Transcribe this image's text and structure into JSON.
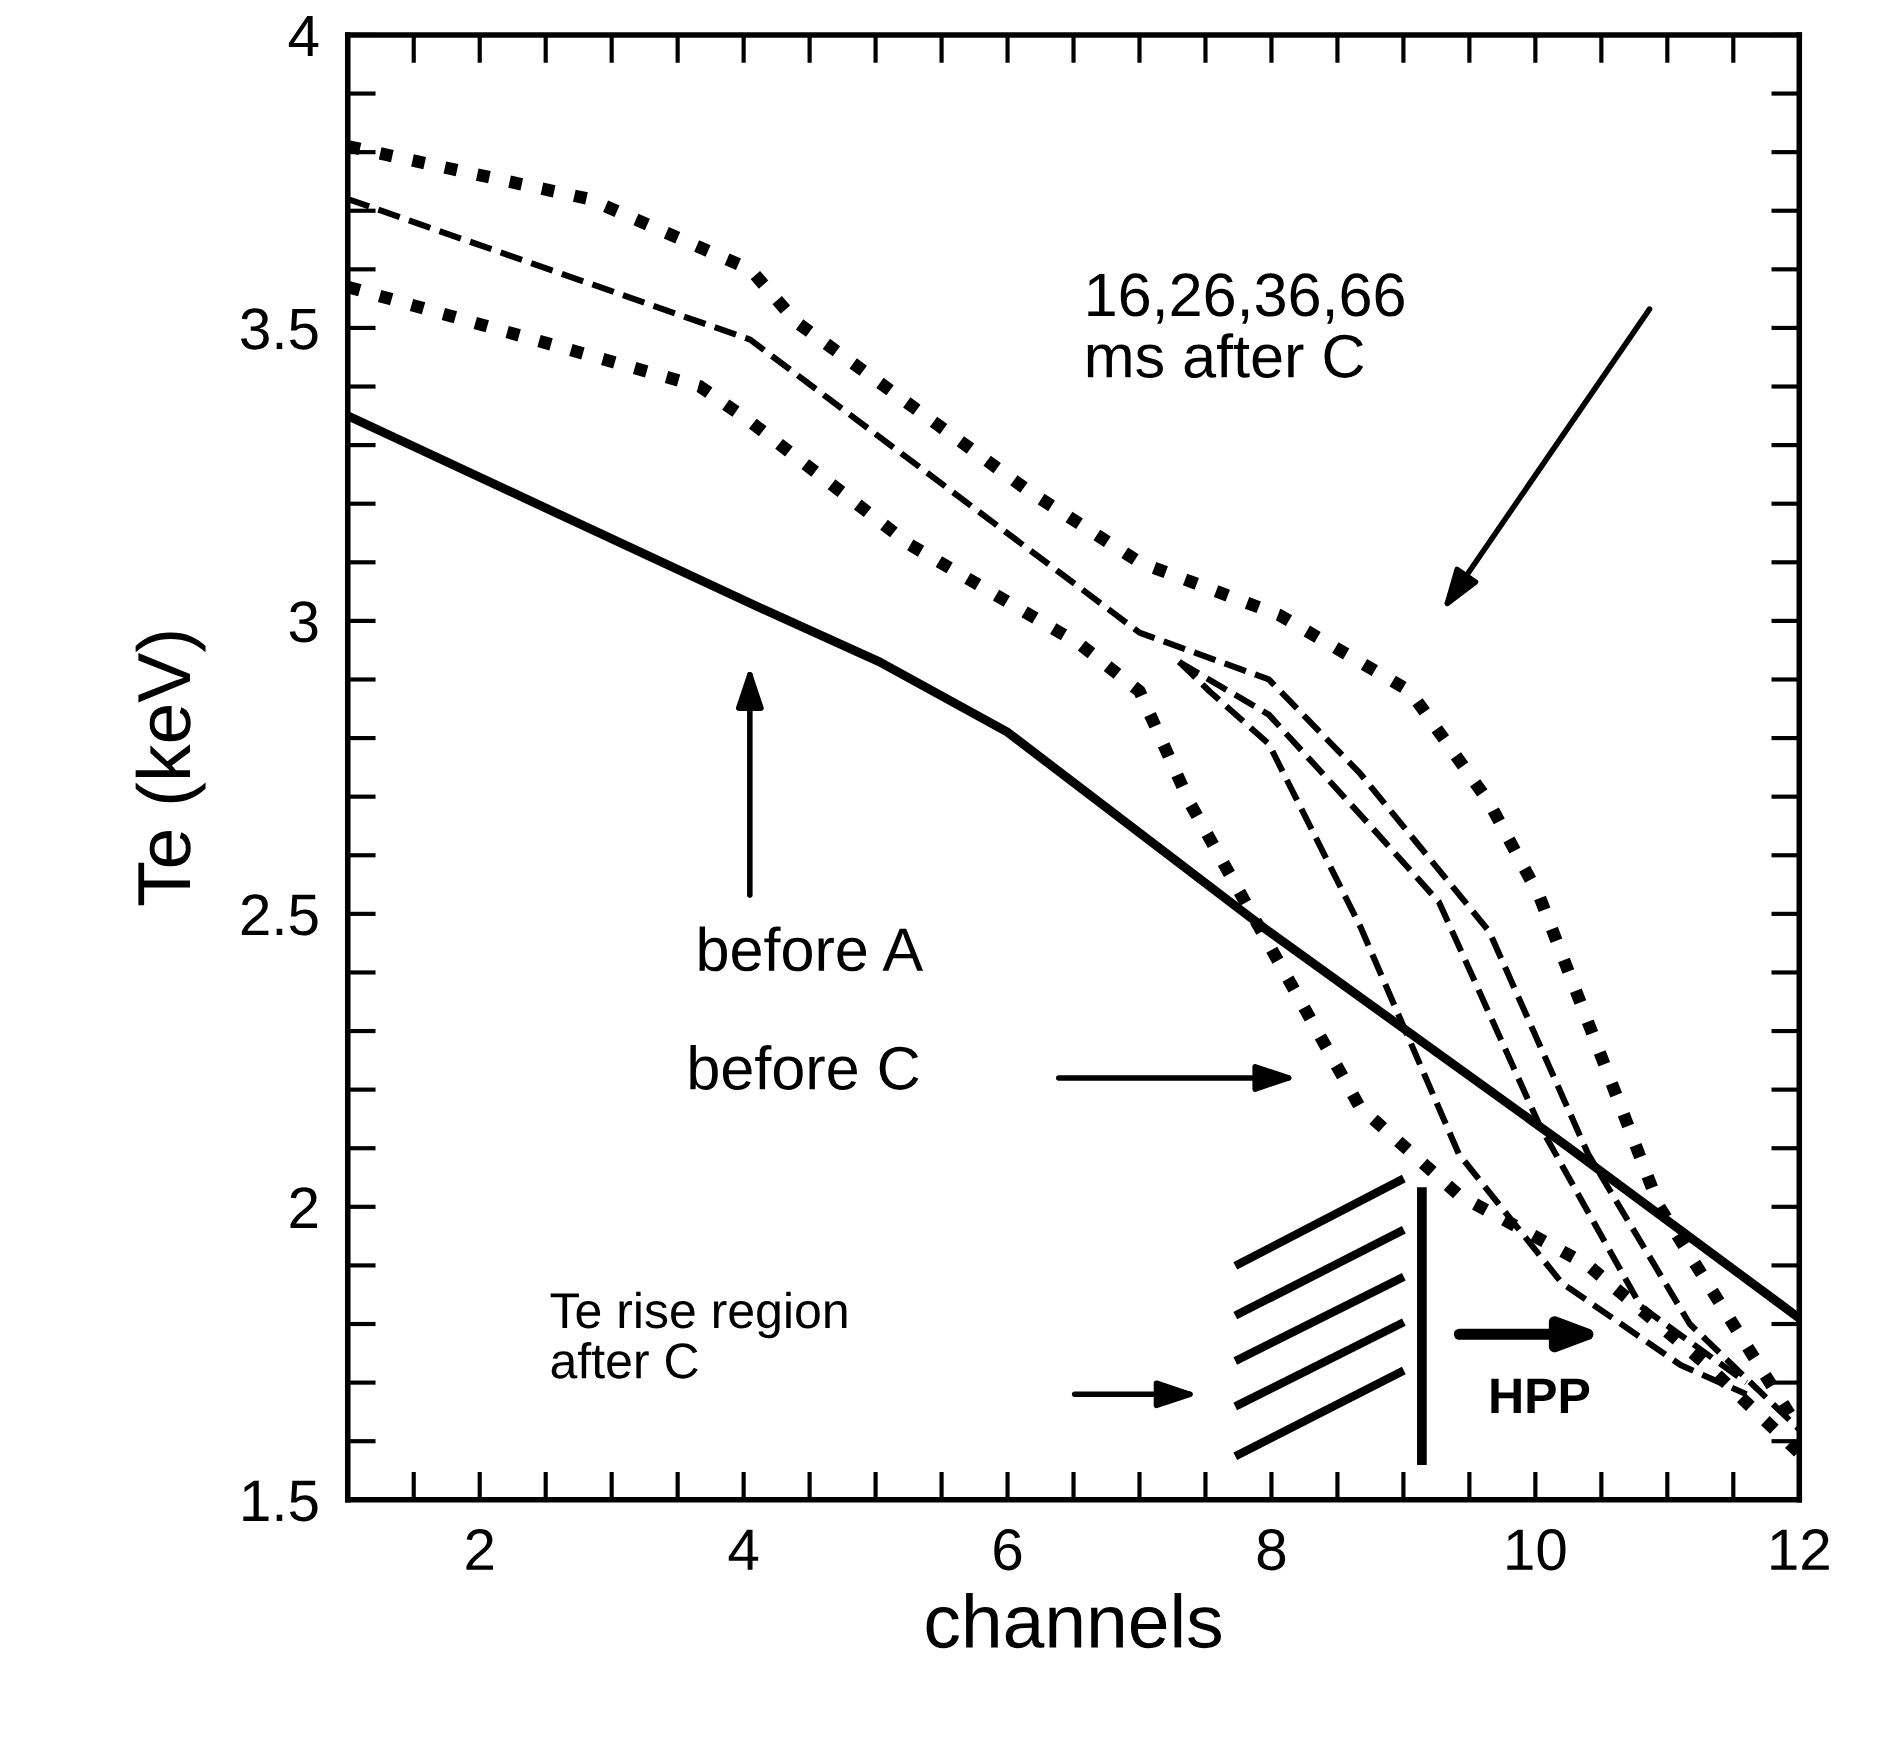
{
  "chart_data": {
    "type": "line",
    "xlabel": "channels",
    "ylabel": "Te (keV)",
    "xlim": [
      1,
      12
    ],
    "ylim": [
      1.5,
      4
    ],
    "xticks": [
      {
        "value": 1.5,
        "label": null
      },
      2,
      {
        "value": 2.5,
        "label": null
      },
      {
        "value": 3,
        "label": null
      },
      {
        "value": 3.5,
        "label": null
      },
      4,
      {
        "value": 4.5,
        "label": null
      },
      {
        "value": 5,
        "label": null
      },
      {
        "value": 5.5,
        "label": null
      },
      6,
      {
        "value": 6.5,
        "label": null
      },
      {
        "value": 7,
        "label": null
      },
      {
        "value": 7.5,
        "label": null
      },
      8,
      {
        "value": 8.5,
        "label": null
      },
      {
        "value": 9,
        "label": null
      },
      {
        "value": 9.5,
        "label": null
      },
      10,
      {
        "value": 10.5,
        "label": null
      },
      {
        "value": 11,
        "label": null
      },
      {
        "value": 11.5,
        "label": null
      },
      12
    ],
    "yticks": [
      1.5,
      {
        "value": 1.6,
        "label": null
      },
      {
        "value": 1.7,
        "label": null
      },
      {
        "value": 1.8,
        "label": null
      },
      {
        "value": 1.9,
        "label": null
      },
      2,
      {
        "value": 2.1,
        "label": null
      },
      {
        "value": 2.2,
        "label": null
      },
      {
        "value": 2.3,
        "label": null
      },
      {
        "value": 2.4,
        "label": null
      },
      2.5,
      {
        "value": 2.6,
        "label": null
      },
      {
        "value": 2.7,
        "label": null
      },
      {
        "value": 2.8,
        "label": null
      },
      {
        "value": 2.9,
        "label": null
      },
      3,
      {
        "value": 3.1,
        "label": null
      },
      {
        "value": 3.2,
        "label": null
      },
      {
        "value": 3.3,
        "label": null
      },
      {
        "value": 3.4,
        "label": null
      },
      3.5,
      {
        "value": 3.6,
        "label": null
      },
      {
        "value": 3.7,
        "label": null
      },
      {
        "value": 3.8,
        "label": null
      },
      {
        "value": 3.9,
        "label": null
      },
      4
    ],
    "grid": false,
    "marker": "none",
    "series": [
      {
        "color": "#000000",
        "line_style": "solid",
        "x": [
          1,
          4.05,
          5.03,
          6,
          7.98,
          10.2,
          12
        ],
        "values": [
          3.35,
          3.03,
          2.93,
          2.81,
          2.47,
          2.11,
          1.81
        ]
      },
      {
        "color": "#000000",
        "line_style": "dotted",
        "x": [
          1,
          2.83,
          4.05,
          4.4,
          6.17,
          7,
          8.06,
          9.05,
          9.65,
          10.03,
          10.94,
          12
        ],
        "values": [
          3.81,
          3.72,
          3.6,
          3.51,
          3.22,
          3.1,
          3.01,
          2.88,
          2.69,
          2.53,
          2.0,
          1.62
        ]
      },
      {
        "color": "#000000",
        "line_style": "dotted",
        "x": [
          1,
          3.67,
          4.05,
          5.26,
          6.55,
          7,
          7.38,
          7.9,
          8.67,
          9.42,
          10.4,
          11.3,
          12
        ],
        "values": [
          3.57,
          3.4,
          3.34,
          3.13,
          2.96,
          2.88,
          2.69,
          2.48,
          2.17,
          2.02,
          1.9,
          1.73,
          1.58
        ]
      },
      {
        "color": "#000000",
        "line_style": "dashed",
        "x": [
          1,
          4.05,
          7,
          7.98,
          8.67,
          9.65,
          10.4,
          11.17,
          12
        ],
        "values": [
          3.72,
          3.48,
          2.98,
          2.9,
          2.74,
          2.47,
          2.09,
          1.8,
          1.62
        ]
      },
      {
        "color": "#000000",
        "line_style": "dashed",
        "x": [
          7.3,
          7.98,
          8.67,
          9.27,
          10.03,
          10.8,
          11.6
        ],
        "values": [
          2.93,
          2.84,
          2.67,
          2.52,
          2.14,
          1.83,
          1.7
        ]
      },
      {
        "color": "#000000",
        "line_style": "dashed",
        "x": [
          7.3,
          7.53,
          7.98,
          8.67,
          9.42,
          10.2,
          11.1,
          11.6
        ],
        "values": [
          2.93,
          2.88,
          2.79,
          2.48,
          2.09,
          1.87,
          1.73,
          1.68
        ]
      }
    ],
    "annotations": [
      "16,26,36,66\nms after C",
      "before A",
      "before C",
      "Te rise region\nafter C",
      "HPP"
    ]
  }
}
